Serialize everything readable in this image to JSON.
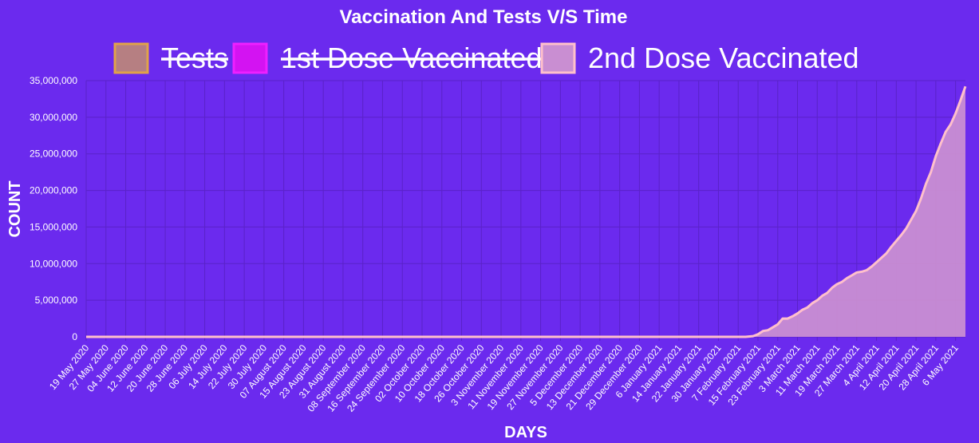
{
  "colors": {
    "background": "#6b2aee",
    "grid": "#5a22c8",
    "tests_fill": "#b67f82",
    "tests_border": "#e0a24a",
    "dose1_fill": "#d313f2",
    "dose1_border": "#ee20ff",
    "dose2_fill": "#c98ed2",
    "dose2_border": "#ffc0cb",
    "text": "#ffffff"
  },
  "chart_data": {
    "type": "area",
    "title": "Vaccination And Tests V/S Time",
    "xlabel": "DAYS",
    "ylabel": "COUNT",
    "ylim": [
      0,
      35000000
    ],
    "y_ticks": [
      "35,000,000",
      "30,000,000",
      "25,000,000",
      "20,000,000",
      "15,000,000",
      "10,000,000",
      "5,000,000",
      "0"
    ],
    "y_tick_values": [
      35000000,
      30000000,
      25000000,
      20000000,
      15000000,
      10000000,
      5000000,
      0
    ],
    "grid": true,
    "legend_position": "top",
    "x_start": "19 May 2020",
    "x_end": "10 May 2021",
    "x_ticks": [
      "19 May 2020",
      "27 May 2020",
      "04 June 2020",
      "12 June 2020",
      "20 June 2020",
      "28 June 2020",
      "06 July 2020",
      "14 July 2020",
      "22 July 2020",
      "30 July 2020",
      "07 August 2020",
      "15 August 2020",
      "23 August 2020",
      "31 August 2020",
      "08 September 2020",
      "16 September 2020",
      "24 September 2020",
      "02 October 2020",
      "10 October 2020",
      "18 October 2020",
      "26 October 2020",
      "3 November 2020",
      "11 November 2020",
      "19 November 2020",
      "27 November 2020",
      "5 December 2020",
      "13 December 2020",
      "21 December 2020",
      "29 December 2020",
      "6 January 2021",
      "14 January 2021",
      "22 January 2021",
      "30 January 2021",
      "7 February 2021",
      "15 February 2021",
      "23 February 2021",
      "3 March 2021",
      "11 March 2021",
      "19 March 2021",
      "27 March 2021",
      "4 April 2021",
      "12 April 2021",
      "20 April 2021",
      "28 April 2021",
      "6 May 2021"
    ],
    "series": [
      {
        "name": "Tests",
        "hidden": true,
        "points": []
      },
      {
        "name": "1st Dose Vaccinated",
        "hidden": true,
        "points": []
      },
      {
        "name": "2nd Dose Vaccinated",
        "hidden": false,
        "points": [
          [
            "19 May 2020",
            0
          ],
          [
            "10 February 2021",
            0
          ],
          [
            "13 February 2021",
            100000
          ],
          [
            "15 February 2021",
            350000
          ],
          [
            "17 February 2021",
            800000
          ],
          [
            "19 February 2021",
            900000
          ],
          [
            "21 February 2021",
            1300000
          ],
          [
            "23 February 2021",
            1700000
          ],
          [
            "25 February 2021",
            2500000
          ],
          [
            "27 February 2021",
            2500000
          ],
          [
            "1 March 2021",
            2800000
          ],
          [
            "3 March 2021",
            3200000
          ],
          [
            "5 March 2021",
            3700000
          ],
          [
            "7 March 2021",
            4000000
          ],
          [
            "9 March 2021",
            4600000
          ],
          [
            "11 March 2021",
            5000000
          ],
          [
            "13 March 2021",
            5600000
          ],
          [
            "15 March 2021",
            6000000
          ],
          [
            "17 March 2021",
            6700000
          ],
          [
            "19 March 2021",
            7200000
          ],
          [
            "21 March 2021",
            7500000
          ],
          [
            "23 March 2021",
            8000000
          ],
          [
            "25 March 2021",
            8400000
          ],
          [
            "27 March 2021",
            8800000
          ],
          [
            "29 March 2021",
            8900000
          ],
          [
            "31 March 2021",
            9100000
          ],
          [
            "2 April 2021",
            9600000
          ],
          [
            "4 April 2021",
            10200000
          ],
          [
            "6 April 2021",
            10800000
          ],
          [
            "8 April 2021",
            11400000
          ],
          [
            "10 April 2021",
            12300000
          ],
          [
            "12 April 2021",
            13100000
          ],
          [
            "14 April 2021",
            13900000
          ],
          [
            "16 April 2021",
            14800000
          ],
          [
            "18 April 2021",
            16000000
          ],
          [
            "20 April 2021",
            17200000
          ],
          [
            "22 April 2021",
            18900000
          ],
          [
            "24 April 2021",
            20900000
          ],
          [
            "26 April 2021",
            22500000
          ],
          [
            "28 April 2021",
            24700000
          ],
          [
            "30 April 2021",
            26400000
          ],
          [
            "2 May 2021",
            28000000
          ],
          [
            "4 May 2021",
            29000000
          ],
          [
            "6 May 2021",
            30500000
          ],
          [
            "8 May 2021",
            32300000
          ],
          [
            "10 May 2021",
            34200000
          ]
        ]
      }
    ]
  }
}
